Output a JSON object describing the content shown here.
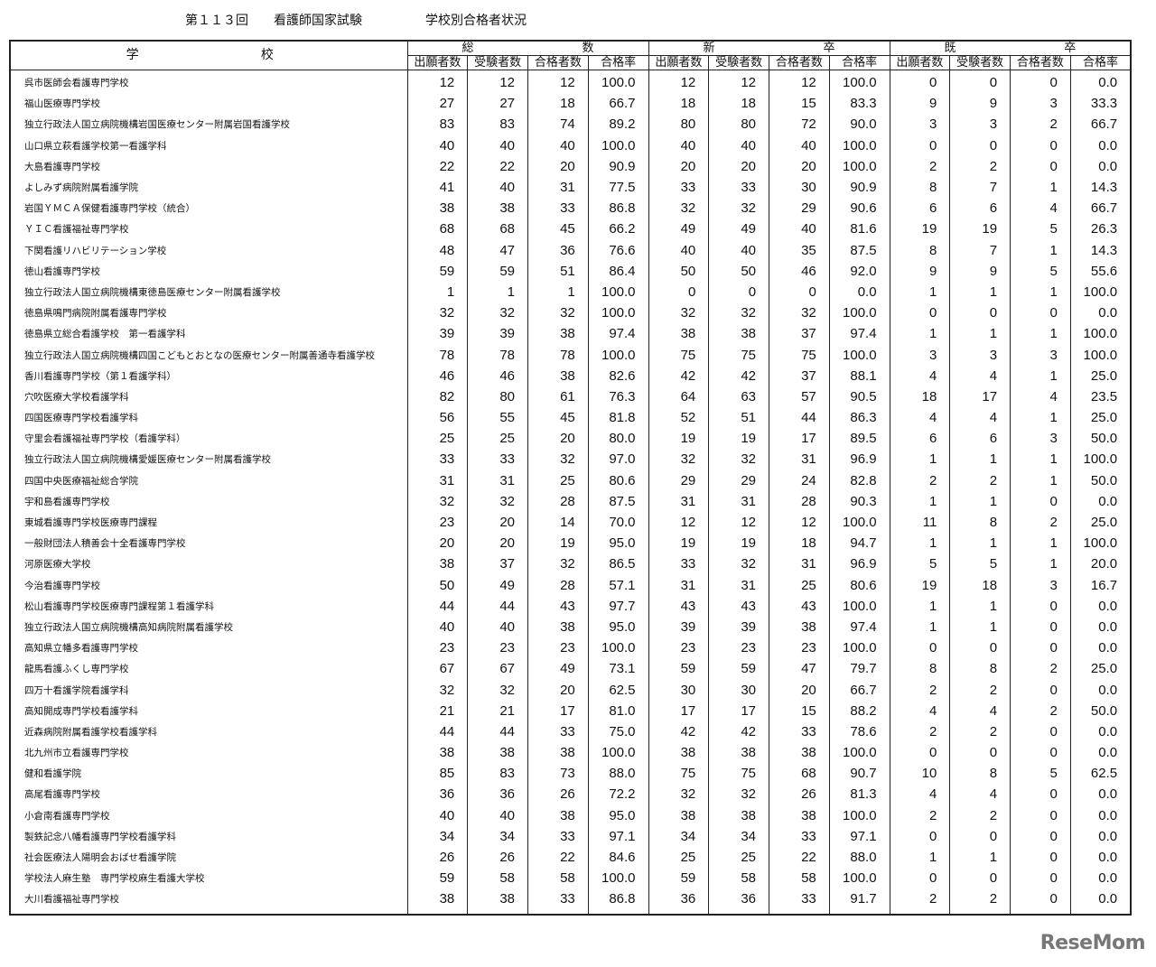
{
  "title": {
    "round": "第１１３回",
    "exam": "看護師国家試験",
    "subject": "学校別合格者状況"
  },
  "header": {
    "school": [
      "学",
      "校"
    ],
    "groups": [
      [
        "総",
        "数"
      ],
      [
        "新",
        "卒"
      ],
      [
        "既",
        "卒"
      ]
    ],
    "columns": [
      "出願者数",
      "受験者数",
      "合格者数",
      "合格率"
    ]
  },
  "rows": [
    [
      "呉市医師会看護専門学校",
      "12",
      "12",
      "12",
      "100.0",
      "12",
      "12",
      "12",
      "100.0",
      "0",
      "0",
      "0",
      "0.0"
    ],
    [
      "福山医療専門学校",
      "27",
      "27",
      "18",
      "66.7",
      "18",
      "18",
      "15",
      "83.3",
      "9",
      "9",
      "3",
      "33.3"
    ],
    [
      "独立行政法人国立病院機構岩国医療センター附属岩国看護学校",
      "83",
      "83",
      "74",
      "89.2",
      "80",
      "80",
      "72",
      "90.0",
      "3",
      "3",
      "2",
      "66.7"
    ],
    [
      "山口県立萩看護学校第一看護学科",
      "40",
      "40",
      "40",
      "100.0",
      "40",
      "40",
      "40",
      "100.0",
      "0",
      "0",
      "0",
      "0.0"
    ],
    [
      "大島看護専門学校",
      "22",
      "22",
      "20",
      "90.9",
      "20",
      "20",
      "20",
      "100.0",
      "2",
      "2",
      "0",
      "0.0"
    ],
    [
      "よしみず病院附属看護学院",
      "41",
      "40",
      "31",
      "77.5",
      "33",
      "33",
      "30",
      "90.9",
      "8",
      "7",
      "1",
      "14.3"
    ],
    [
      "岩国ＹＭＣＡ保健看護専門学校（統合）",
      "38",
      "38",
      "33",
      "86.8",
      "32",
      "32",
      "29",
      "90.6",
      "6",
      "6",
      "4",
      "66.7"
    ],
    [
      "ＹＩＣ看護福祉専門学校",
      "68",
      "68",
      "45",
      "66.2",
      "49",
      "49",
      "40",
      "81.6",
      "19",
      "19",
      "5",
      "26.3"
    ],
    [
      "下関看護リハビリテーション学校",
      "48",
      "47",
      "36",
      "76.6",
      "40",
      "40",
      "35",
      "87.5",
      "8",
      "7",
      "1",
      "14.3"
    ],
    [
      "徳山看護専門学校",
      "59",
      "59",
      "51",
      "86.4",
      "50",
      "50",
      "46",
      "92.0",
      "9",
      "9",
      "5",
      "55.6"
    ],
    [
      "独立行政法人国立病院機構東徳島医療センター附属看護学校",
      "1",
      "1",
      "1",
      "100.0",
      "0",
      "0",
      "0",
      "0.0",
      "1",
      "1",
      "1",
      "100.0"
    ],
    [
      "徳島県鳴門病院附属看護専門学校",
      "32",
      "32",
      "32",
      "100.0",
      "32",
      "32",
      "32",
      "100.0",
      "0",
      "0",
      "0",
      "0.0"
    ],
    [
      "徳島県立総合看護学校　第一看護学科",
      "39",
      "39",
      "38",
      "97.4",
      "38",
      "38",
      "37",
      "97.4",
      "1",
      "1",
      "1",
      "100.0"
    ],
    [
      "独立行政法人国立病院機構四国こどもとおとなの医療センター附属善通寺看護学校",
      "78",
      "78",
      "78",
      "100.0",
      "75",
      "75",
      "75",
      "100.0",
      "3",
      "3",
      "3",
      "100.0"
    ],
    [
      "香川看護専門学校（第１看護学科）",
      "46",
      "46",
      "38",
      "82.6",
      "42",
      "42",
      "37",
      "88.1",
      "4",
      "4",
      "1",
      "25.0"
    ],
    [
      "穴吹医療大学校看護学科",
      "82",
      "80",
      "61",
      "76.3",
      "64",
      "63",
      "57",
      "90.5",
      "18",
      "17",
      "4",
      "23.5"
    ],
    [
      "四国医療専門学校看護学科",
      "56",
      "55",
      "45",
      "81.8",
      "52",
      "51",
      "44",
      "86.3",
      "4",
      "4",
      "1",
      "25.0"
    ],
    [
      "守里会看護福祉専門学校（看護学科）",
      "25",
      "25",
      "20",
      "80.0",
      "19",
      "19",
      "17",
      "89.5",
      "6",
      "6",
      "3",
      "50.0"
    ],
    [
      "独立行政法人国立病院機構愛媛医療センター附属看護学校",
      "33",
      "33",
      "32",
      "97.0",
      "32",
      "32",
      "31",
      "96.9",
      "1",
      "1",
      "1",
      "100.0"
    ],
    [
      "四国中央医療福祉総合学院",
      "31",
      "31",
      "25",
      "80.6",
      "29",
      "29",
      "24",
      "82.8",
      "2",
      "2",
      "1",
      "50.0"
    ],
    [
      "宇和島看護専門学校",
      "32",
      "32",
      "28",
      "87.5",
      "31",
      "31",
      "28",
      "90.3",
      "1",
      "1",
      "0",
      "0.0"
    ],
    [
      "東城看護専門学校医療専門課程",
      "23",
      "20",
      "14",
      "70.0",
      "12",
      "12",
      "12",
      "100.0",
      "11",
      "8",
      "2",
      "25.0"
    ],
    [
      "一般財団法人積善会十全看護専門学校",
      "20",
      "20",
      "19",
      "95.0",
      "19",
      "19",
      "18",
      "94.7",
      "1",
      "1",
      "1",
      "100.0"
    ],
    [
      "河原医療大学校",
      "38",
      "37",
      "32",
      "86.5",
      "33",
      "32",
      "31",
      "96.9",
      "5",
      "5",
      "1",
      "20.0"
    ],
    [
      "今治看護専門学校",
      "50",
      "49",
      "28",
      "57.1",
      "31",
      "31",
      "25",
      "80.6",
      "19",
      "18",
      "3",
      "16.7"
    ],
    [
      "松山看護専門学校医療専門課程第１看護学科",
      "44",
      "44",
      "43",
      "97.7",
      "43",
      "43",
      "43",
      "100.0",
      "1",
      "1",
      "0",
      "0.0"
    ],
    [
      "独立行政法人国立病院機構高知病院附属看護学校",
      "40",
      "40",
      "38",
      "95.0",
      "39",
      "39",
      "38",
      "97.4",
      "1",
      "1",
      "0",
      "0.0"
    ],
    [
      "高知県立幡多看護専門学校",
      "23",
      "23",
      "23",
      "100.0",
      "23",
      "23",
      "23",
      "100.0",
      "0",
      "0",
      "0",
      "0.0"
    ],
    [
      "龍馬看護ふくし専門学校",
      "67",
      "67",
      "49",
      "73.1",
      "59",
      "59",
      "47",
      "79.7",
      "8",
      "8",
      "2",
      "25.0"
    ],
    [
      "四万十看護学院看護学科",
      "32",
      "32",
      "20",
      "62.5",
      "30",
      "30",
      "20",
      "66.7",
      "2",
      "2",
      "0",
      "0.0"
    ],
    [
      "高知開成専門学校看護学科",
      "21",
      "21",
      "17",
      "81.0",
      "17",
      "17",
      "15",
      "88.2",
      "4",
      "4",
      "2",
      "50.0"
    ],
    [
      "近森病院附属看護学校看護学科",
      "44",
      "44",
      "33",
      "75.0",
      "42",
      "42",
      "33",
      "78.6",
      "2",
      "2",
      "0",
      "0.0"
    ],
    [
      "北九州市立看護専門学校",
      "38",
      "38",
      "38",
      "100.0",
      "38",
      "38",
      "38",
      "100.0",
      "0",
      "0",
      "0",
      "0.0"
    ],
    [
      "健和看護学院",
      "85",
      "83",
      "73",
      "88.0",
      "75",
      "75",
      "68",
      "90.7",
      "10",
      "8",
      "5",
      "62.5"
    ],
    [
      "高尾看護専門学校",
      "36",
      "36",
      "26",
      "72.2",
      "32",
      "32",
      "26",
      "81.3",
      "4",
      "4",
      "0",
      "0.0"
    ],
    [
      "小倉南看護専門学校",
      "40",
      "40",
      "38",
      "95.0",
      "38",
      "38",
      "38",
      "100.0",
      "2",
      "2",
      "0",
      "0.0"
    ],
    [
      "製鉄記念八幡看護専門学校看護学科",
      "34",
      "34",
      "33",
      "97.1",
      "34",
      "34",
      "33",
      "97.1",
      "0",
      "0",
      "0",
      "0.0"
    ],
    [
      "社会医療法人陽明会おばせ看護学院",
      "26",
      "26",
      "22",
      "84.6",
      "25",
      "25",
      "22",
      "88.0",
      "1",
      "1",
      "0",
      "0.0"
    ],
    [
      "学校法人麻生塾　専門学校麻生看護大学校",
      "59",
      "58",
      "58",
      "100.0",
      "59",
      "58",
      "58",
      "100.0",
      "0",
      "0",
      "0",
      "0.0"
    ],
    [
      "大川看護福祉専門学校",
      "38",
      "38",
      "33",
      "86.8",
      "36",
      "36",
      "33",
      "91.7",
      "2",
      "2",
      "0",
      "0.0"
    ]
  ],
  "watermark": "ReseMom"
}
